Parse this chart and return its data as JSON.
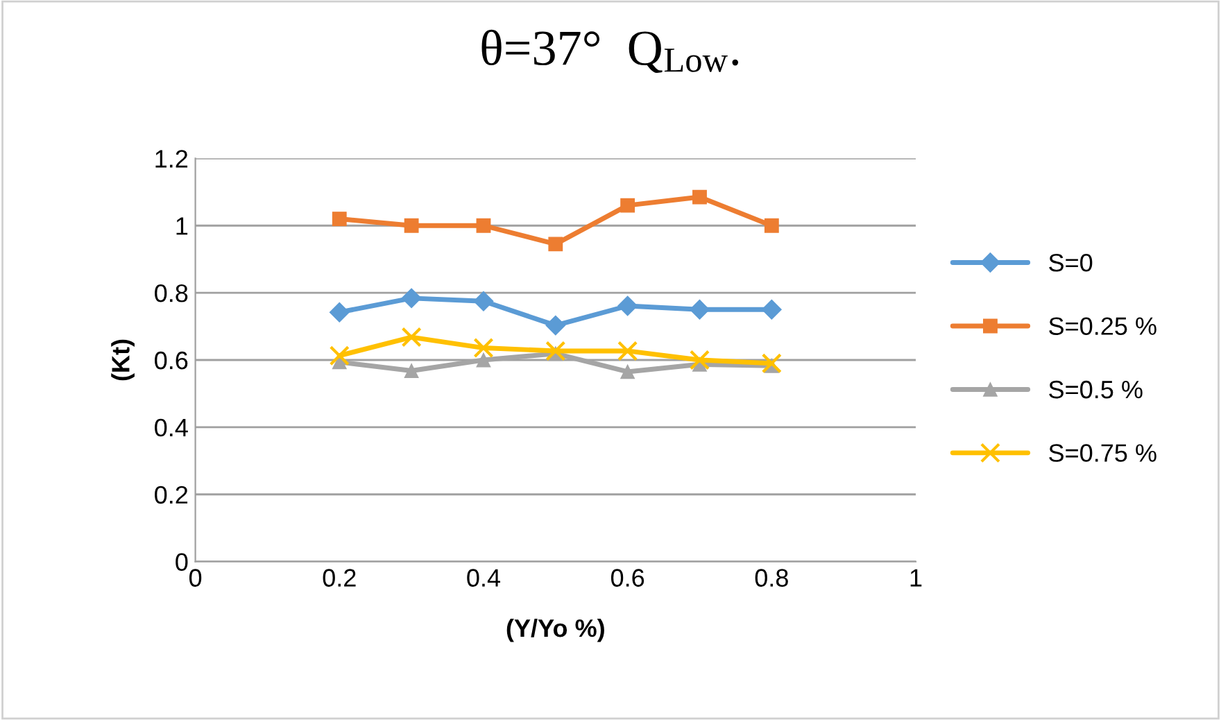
{
  "chart_data": {
    "type": "line",
    "title": "θ=37°  Q$_{Low}$.",
    "xlabel": "(Y/Yo %)",
    "ylabel": "(Kt)",
    "x": [
      0.2,
      0.3,
      0.4,
      0.5,
      0.6,
      0.7,
      0.8
    ],
    "series": [
      {
        "name": "S=0",
        "color": "#5b9bd5",
        "marker": "diamond",
        "values": [
          0.742,
          0.784,
          0.775,
          0.703,
          0.761,
          0.75,
          0.75
        ]
      },
      {
        "name": "S=0.25 %",
        "color": "#ed7d31",
        "marker": "square",
        "values": [
          1.02,
          1.0,
          1.0,
          0.945,
          1.06,
          1.085,
          1.0
        ]
      },
      {
        "name": "S=0.5 %",
        "color": "#a5a5a5",
        "marker": "triangle",
        "values": [
          0.594,
          0.568,
          0.6,
          0.619,
          0.565,
          0.587,
          0.583
        ]
      },
      {
        "name": "S=0.75 %",
        "color": "#ffc000",
        "marker": "cross",
        "values": [
          0.613,
          0.668,
          0.636,
          0.627,
          0.627,
          0.6,
          0.59
        ]
      }
    ],
    "xlim": [
      0,
      1
    ],
    "xticks": [
      0,
      0.2,
      0.4,
      0.6,
      0.8,
      1
    ],
    "ylim": [
      0,
      1.2
    ],
    "yticks": [
      0,
      0.2,
      0.4,
      0.6,
      0.8,
      1,
      1.2
    ],
    "grid": "y",
    "legend": "right",
    "line_style": "solid"
  }
}
